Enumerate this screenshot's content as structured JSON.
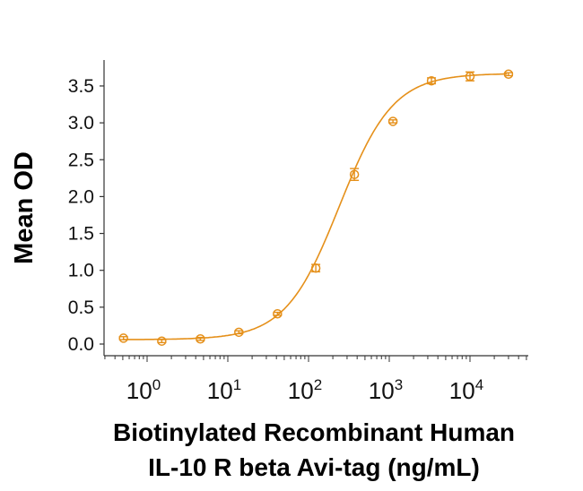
{
  "chart_data": {
    "type": "scatter",
    "title": "",
    "xlabel_lines": [
      "Biotinylated Recombinant Human",
      "IL-10 R beta Avi-tag (ng/mL)"
    ],
    "ylabel": "Mean OD",
    "xscale": "log",
    "xlim": [
      0.3,
      52000
    ],
    "ylim": [
      -0.15,
      3.85
    ],
    "x_ticks": [
      {
        "base": "10",
        "exp": "0",
        "value": 1
      },
      {
        "base": "10",
        "exp": "1",
        "value": 10
      },
      {
        "base": "10",
        "exp": "2",
        "value": 100
      },
      {
        "base": "10",
        "exp": "3",
        "value": 1000
      },
      {
        "base": "10",
        "exp": "4",
        "value": 10000
      }
    ],
    "y_ticks": [
      "0.0",
      "0.5",
      "1.0",
      "1.5",
      "2.0",
      "2.5",
      "3.0",
      "3.5"
    ],
    "grid": false,
    "color": "#E5901A",
    "series": [
      {
        "name": "IL-10 R beta",
        "x": [
          0.51,
          1.52,
          4.57,
          13.7,
          41.2,
          123,
          370,
          1111,
          3333,
          10000,
          30000
        ],
        "y": [
          0.08,
          0.04,
          0.07,
          0.16,
          0.41,
          1.03,
          2.3,
          3.02,
          3.57,
          3.63,
          3.66
        ],
        "err": [
          0.02,
          0.02,
          0.02,
          0.02,
          0.02,
          0.05,
          0.08,
          0.02,
          0.04,
          0.06,
          0.02
        ]
      }
    ],
    "fit": {
      "model": "4PL",
      "bottom": 0.06,
      "top": 3.67,
      "ec50": 240,
      "hill": 1.3
    }
  }
}
